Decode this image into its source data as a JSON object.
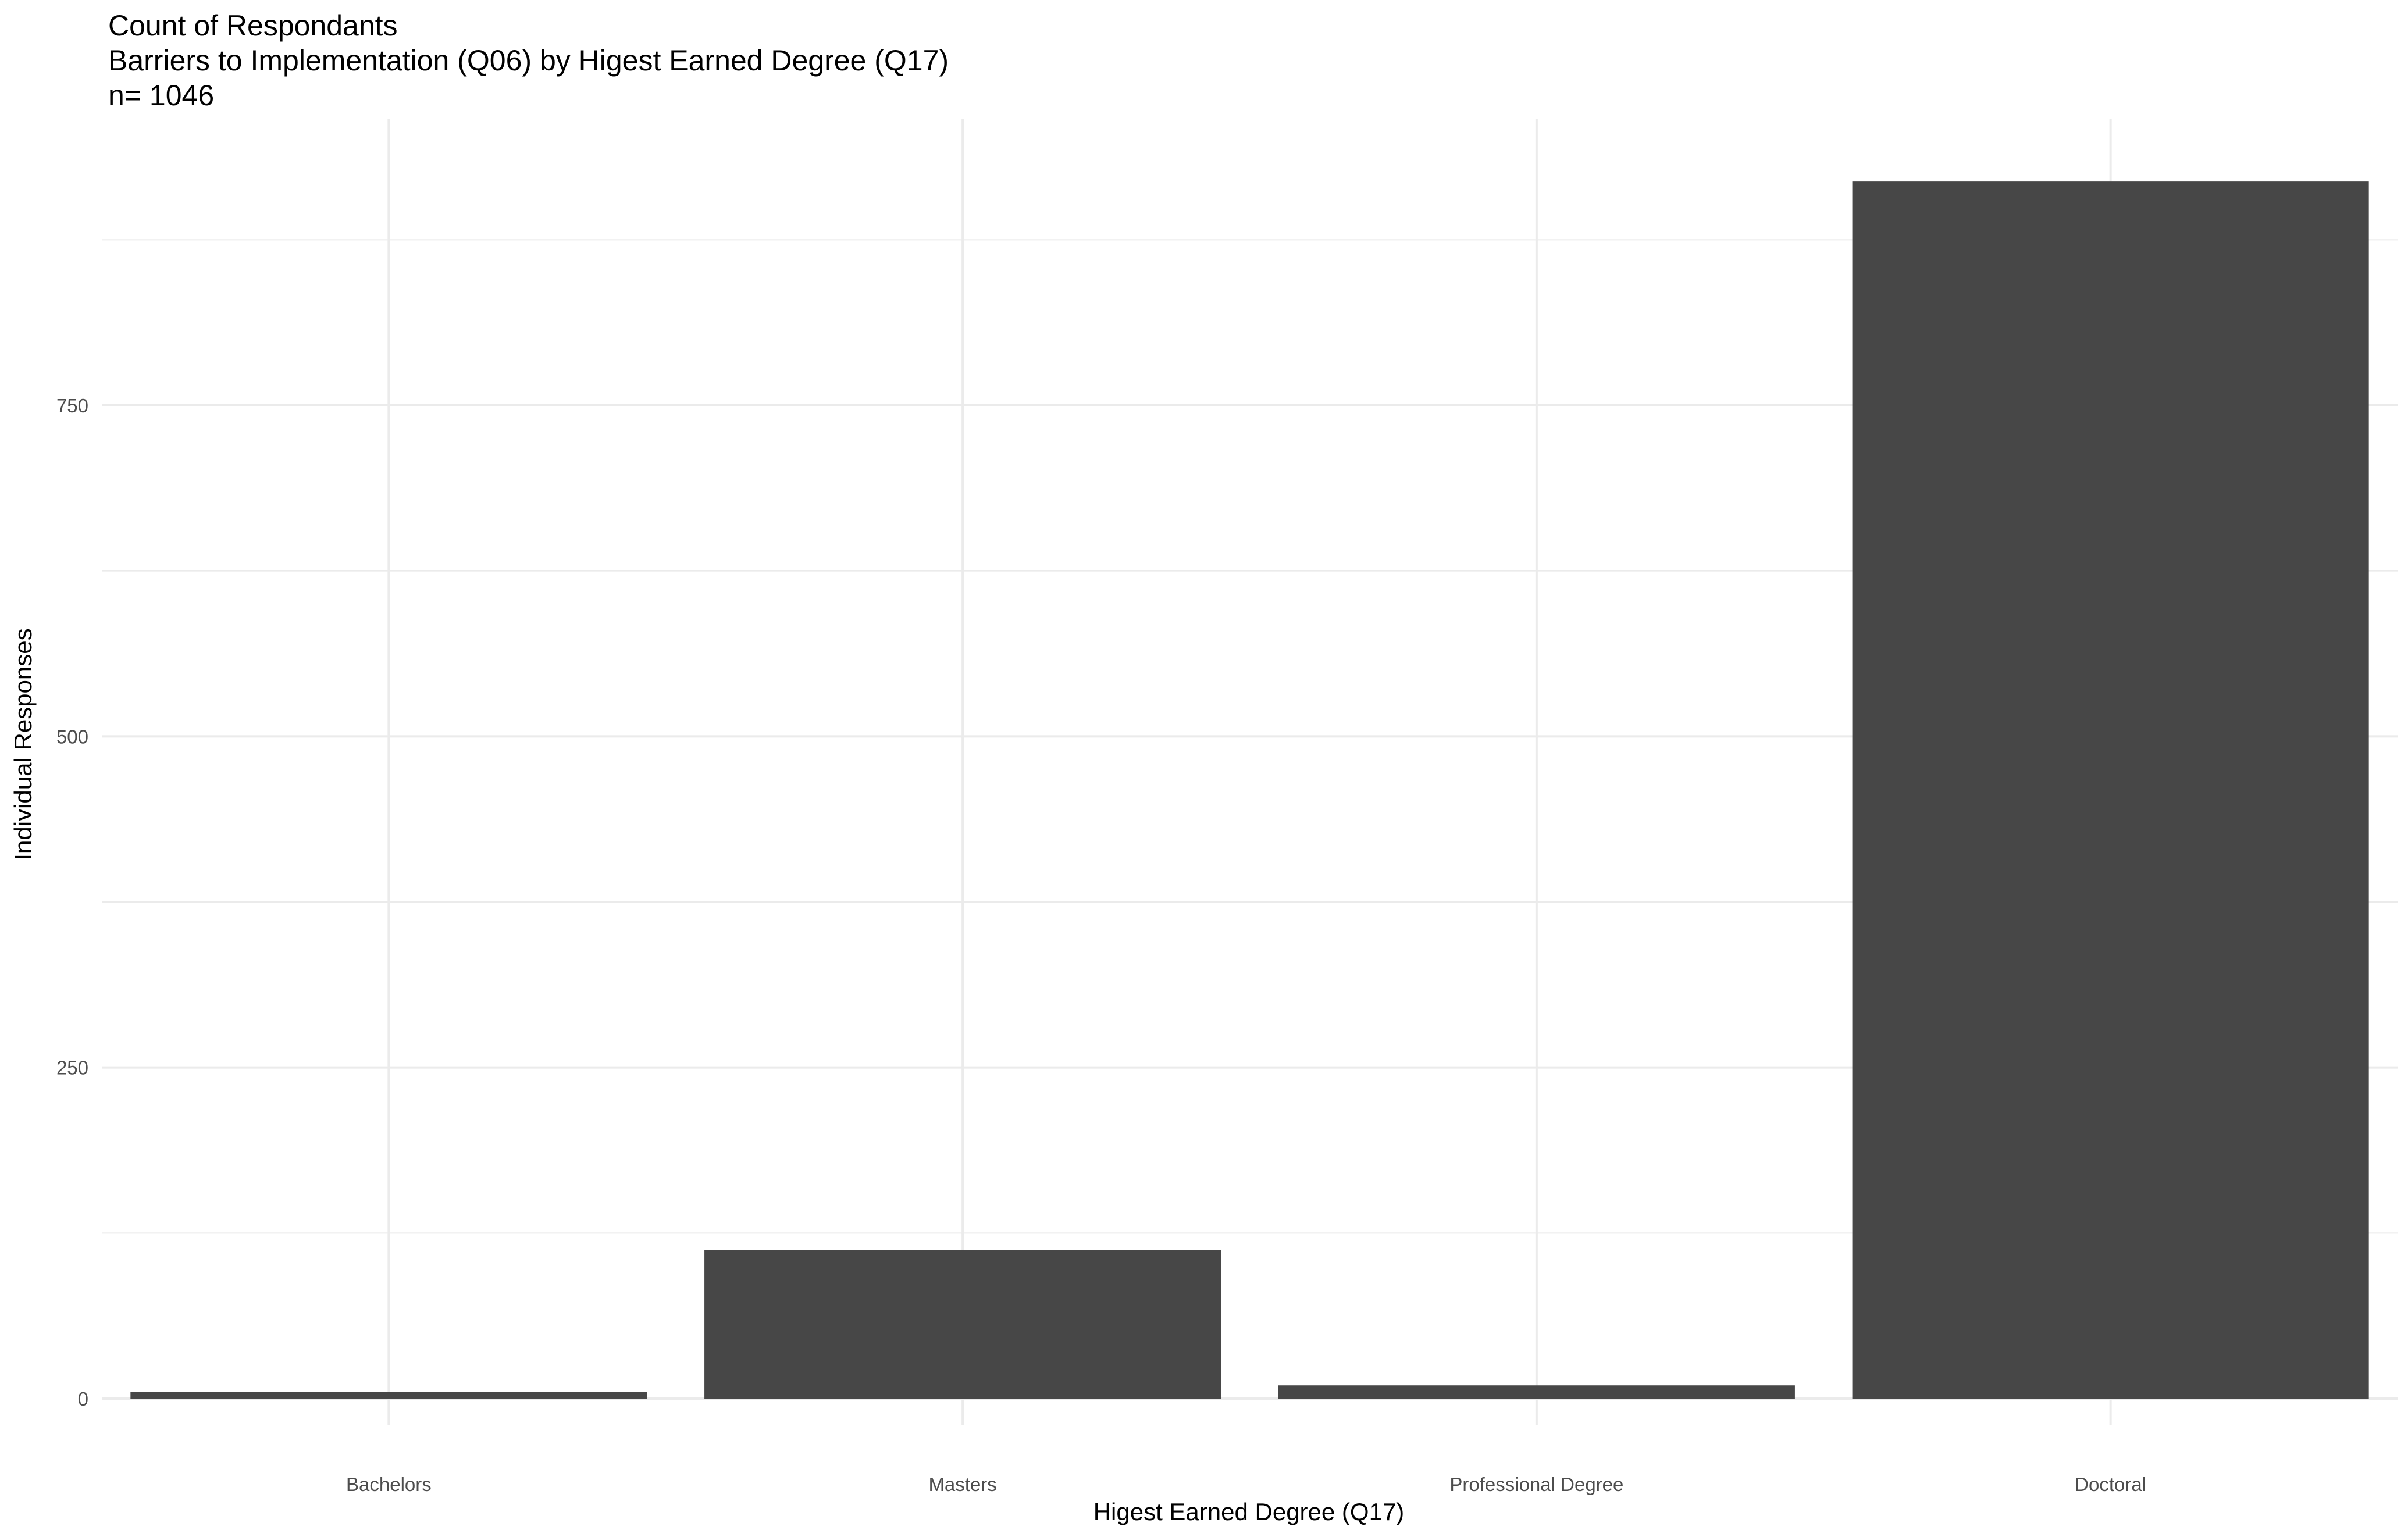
{
  "chart_data": {
    "type": "bar",
    "title": "Count of Respondants",
    "subtitle": "Barriers to Implementation (Q06) by Higest Earned Degree (Q17)",
    "caption_n": "n= 1046",
    "xlabel": "Higest Earned Degree (Q17)",
    "ylabel": "Individual Responses",
    "categories": [
      "Bachelors",
      "Masters",
      "Professional Degree",
      "Doctoral"
    ],
    "values": [
      5,
      112,
      10,
      919
    ],
    "ylim": [
      0,
      970
    ],
    "yticks": [
      0,
      250,
      500,
      750
    ],
    "yticks_minor": [
      125,
      375,
      625,
      875
    ],
    "grid": true,
    "legend": "none",
    "bar_color": "#474747",
    "grid_color": "#ebebeb"
  }
}
